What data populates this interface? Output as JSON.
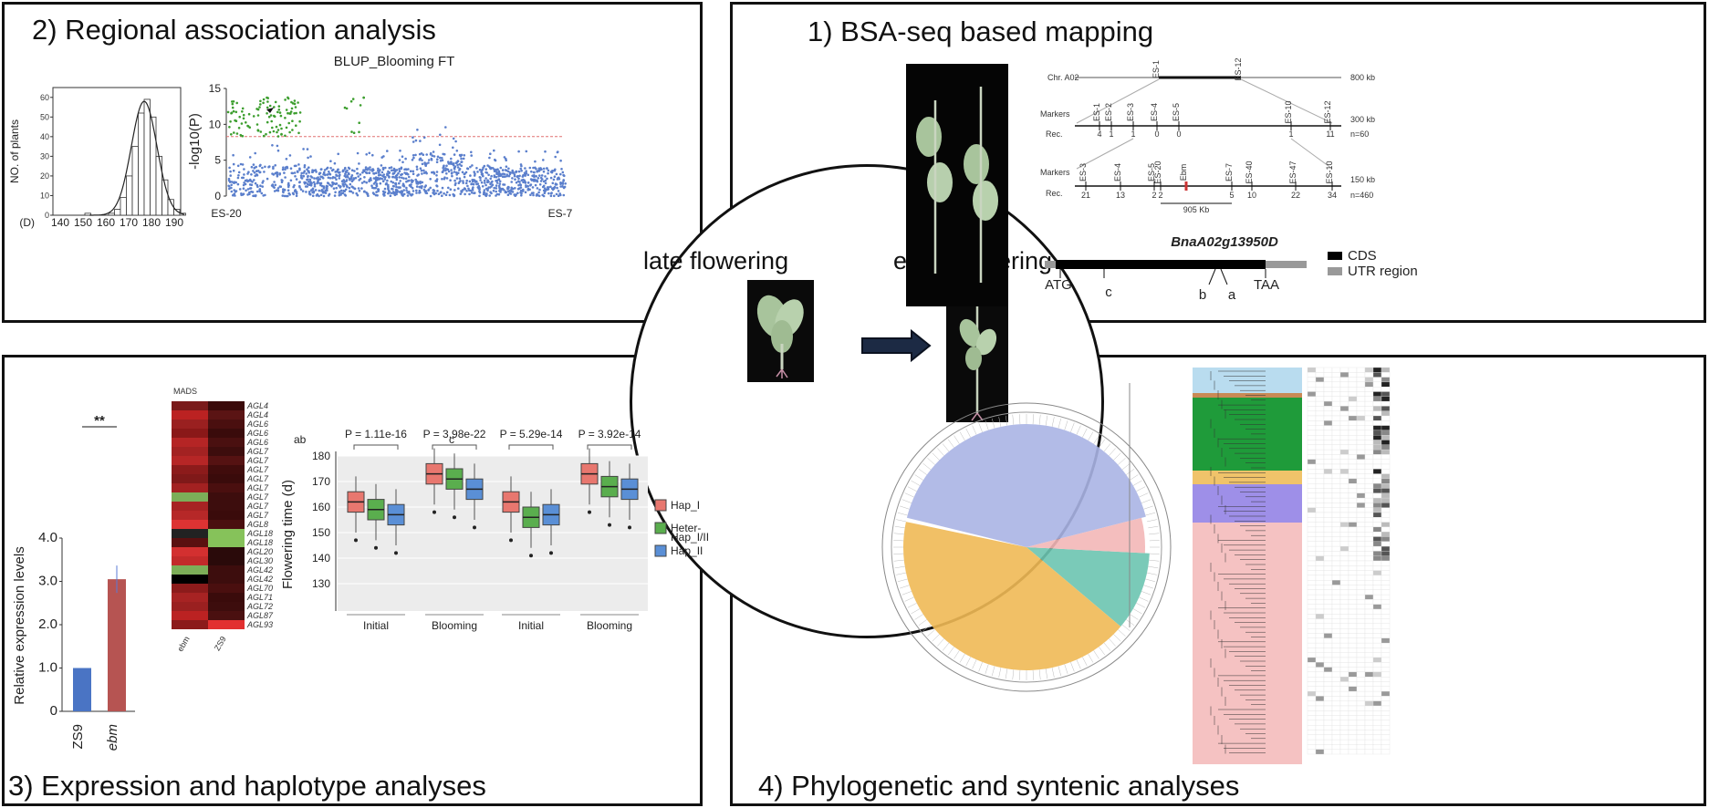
{
  "panels": {
    "p2": {
      "title": "2) Regional association analysis"
    },
    "p1": {
      "title": "1) BSA-seq based mapping"
    },
    "p3": {
      "title": "3) Expression and haplotype analyses"
    },
    "p4": {
      "title": "4) Phylogenetic and syntenic analyses"
    }
  },
  "center": {
    "late": "late flowering",
    "early": "early flowering"
  },
  "hist": {
    "ylabel": "NO. of plants",
    "yticks": [
      "0",
      "10",
      "20",
      "30",
      "40",
      "50",
      "60"
    ],
    "xticks": [
      "140",
      "150",
      "160",
      "170",
      "180",
      "190"
    ],
    "xunit": "(D)"
  },
  "manhattan": {
    "title": "BLUP_Blooming FT",
    "ylabel": "-log10(P)",
    "yticks": [
      "0",
      "5",
      "10",
      "15"
    ],
    "left": "ES-20",
    "right": "ES-7"
  },
  "mapping": {
    "chr": "Chr. A02",
    "top_markers": [
      "ES-1",
      "ES-12"
    ],
    "scale1": "800 kb",
    "markers_label": "Markers",
    "rec_label": "Rec.",
    "m2": [
      "ES-1",
      "ES-2",
      "ES-3",
      "ES-4",
      "ES-5",
      "ES-10",
      "ES-12"
    ],
    "r2": [
      "4",
      "1",
      "1",
      "0",
      "0",
      "1",
      "11"
    ],
    "scale2": "300 kb",
    "n2": "n=60",
    "m3": [
      "ES-3",
      "ES-4",
      "ES-5",
      "ES-20",
      "Ebm",
      "ES-7",
      "ES-40",
      "ES-47",
      "ES-10"
    ],
    "r3": [
      "21",
      "13",
      "2",
      "2",
      "5",
      "10",
      "22",
      "34"
    ],
    "scale3": "150 kb",
    "n3": "n=460",
    "interval": "905 Kb",
    "gene": "BnaA02g13950D",
    "legend_cds": "CDS",
    "legend_utr": "UTR region",
    "gene_labels": {
      "atg": "ATG",
      "c": "c",
      "b": "b",
      "a": "a",
      "taa": "TAA"
    }
  },
  "expression": {
    "ylabel": "Relative expression levels",
    "yticks": [
      "0",
      "1.0",
      "2.0",
      "3.0",
      "4.0"
    ],
    "bars": [
      {
        "name": "ZS9",
        "value": 1.0
      },
      {
        "name": "ebm",
        "value": 3.05
      }
    ],
    "sig": "**",
    "heat_title": "MADS",
    "heat_genes": [
      "AGL4",
      "AGL4",
      "AGL6",
      "AGL6",
      "AGL6",
      "AGL7",
      "AGL7",
      "AGL7",
      "AGL7",
      "AGL7",
      "AGL7",
      "AGL7",
      "AGL7",
      "AGL8",
      "AGL18",
      "AGL18",
      "AGL20",
      "AGL30",
      "AGL42",
      "AGL42",
      "AGL70",
      "AGL71",
      "AGL72",
      "AGL87",
      "AGL93"
    ],
    "heat_cols": [
      "ebm",
      "ZS9"
    ]
  },
  "boxplot": {
    "ylabel": "Flowering time (d)",
    "yticks": [
      "130",
      "140",
      "150",
      "160",
      "170",
      "180"
    ],
    "label_ab": "ab",
    "label_c": "c",
    "p_ab_initial": "P = 1.11e-16",
    "p_ab_blooming": "P = 3.98e-22",
    "p_c_initial": "P = 5.29e-14",
    "p_c_blooming": "P = 3.92e-14",
    "groups": [
      "Initial",
      "Blooming",
      "Initial",
      "Blooming"
    ],
    "legend": [
      "Hap_I",
      "Heter-\nHap_I/II",
      "Hap_II"
    ],
    "colors": [
      "#e8776f",
      "#5aae4e",
      "#5a8fd6"
    ]
  },
  "colors": {
    "green": "#3c9e2e",
    "blue": "#5b7fcc",
    "lavender": "#aab4e4",
    "orange": "#f0b955",
    "teal": "#6cc4b0",
    "pink": "#f3b7b7"
  }
}
